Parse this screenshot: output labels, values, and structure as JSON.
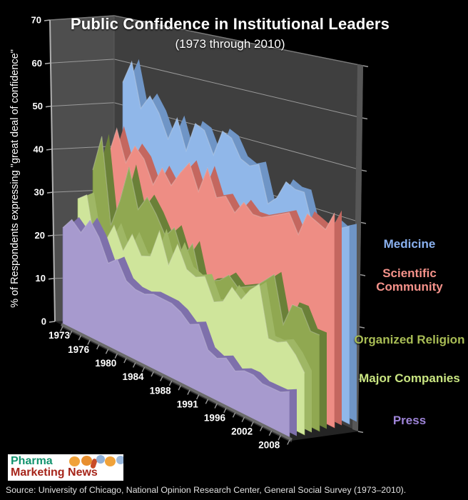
{
  "header": {
    "title": "Public Confidence in Institutional Leaders",
    "subtitle": "(1973 through 2010)"
  },
  "y_axis": {
    "title": "% of Respondents expressing \"great deal of confidence\"",
    "ticks": [
      0,
      10,
      20,
      30,
      40,
      50,
      60,
      70
    ]
  },
  "x_axis": {
    "tick_labels": [
      "1973",
      "1976",
      "1980",
      "1984",
      "1988",
      "1991",
      "1996",
      "2002",
      "2008"
    ]
  },
  "legend": {
    "items": [
      {
        "label": "Medicine",
        "color": "#8ab1ef"
      },
      {
        "label": "Scientific Community",
        "color": "#f5928a"
      },
      {
        "label": "Organized Religion",
        "color": "#a9bd55"
      },
      {
        "label": "Major Companies",
        "color": "#c9e581"
      },
      {
        "label": "Press",
        "color": "#9e84d8"
      }
    ]
  },
  "footer": {
    "source": "Source: University of Chicago, National Opinion Research Center, General Social Survey (1973–2010)."
  },
  "logo": {
    "line1": "Pharma",
    "line2": "Marketing News"
  },
  "chart_data": {
    "type": "area",
    "projection": "3d",
    "title": "Public Confidence in Institutional Leaders",
    "subtitle": "(1973 through 2010)",
    "ylabel": "% of Respondents expressing \"great deal of confidence\"",
    "ylim": [
      0,
      70
    ],
    "ytick_step": 10,
    "grid": true,
    "legend_position": "right",
    "x": [
      1973,
      1974,
      1975,
      1976,
      1977,
      1978,
      1980,
      1982,
      1983,
      1984,
      1986,
      1987,
      1988,
      1989,
      1990,
      1991,
      1993,
      1994,
      1996,
      1998,
      2000,
      2002,
      2004,
      2006,
      2008,
      2010
    ],
    "xtick_labels": [
      1973,
      1976,
      1980,
      1984,
      1988,
      1991,
      1996,
      2002,
      2008
    ],
    "series_order": "back-to-front",
    "series": [
      {
        "name": "Medicine",
        "face_color": "#90b7e9",
        "edge_color": "#6f95c6",
        "values": [
          54,
          60,
          50,
          54,
          51,
          46,
          52,
          45,
          52,
          51,
          46,
          52,
          51,
          47,
          46,
          47,
          39,
          41,
          45,
          44,
          44,
          37,
          37,
          40,
          39,
          40
        ]
      },
      {
        "name": "Scientific Community",
        "face_color": "#ee8d84",
        "edge_color": "#c4675f",
        "values": [
          37,
          45,
          38,
          43,
          41,
          36,
          41,
          38,
          42,
          45,
          39,
          45,
          39,
          40,
          37,
          40,
          38,
          38,
          39,
          40,
          41,
          37,
          42,
          41,
          40,
          44
        ]
      },
      {
        "name": "Organized Religion",
        "face_color": "#90a851",
        "edge_color": "#6a8038",
        "values": [
          35,
          44,
          24,
          31,
          40,
          31,
          35,
          32,
          28,
          31,
          25,
          29,
          20,
          22,
          23,
          25,
          23,
          24,
          25,
          27,
          29,
          19,
          24,
          24,
          20,
          20
        ]
      },
      {
        "name": "Major Companies",
        "face_color": "#cfe59b",
        "edge_color": "#9fb765",
        "values": [
          29,
          31,
          19,
          22,
          27,
          22,
          27,
          23,
          24,
          31,
          24,
          30,
          25,
          24,
          25,
          20,
          21,
          25,
          23,
          26,
          28,
          17,
          17,
          18,
          16,
          13
        ]
      },
      {
        "name": "Press",
        "face_color": "#a79ace",
        "edge_color": "#7e70ab",
        "values": [
          23,
          26,
          24,
          28,
          25,
          20,
          22,
          18,
          17,
          17,
          18,
          18,
          18,
          17,
          15,
          16,
          11,
          10,
          11,
          9,
          10,
          10,
          9,
          9,
          9,
          10
        ]
      }
    ]
  }
}
